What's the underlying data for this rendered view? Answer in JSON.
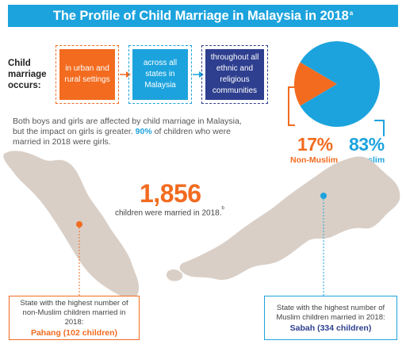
{
  "header": {
    "title": "The Profile of Child Marriage in Malaysia in 2018",
    "title_note": "a"
  },
  "occurs": {
    "label": "Child marriage occurs:",
    "boxes": [
      {
        "text": "in urban and rural settings",
        "color": "#f26b1f"
      },
      {
        "text": "across all states in Malaysia",
        "color": "#1ca3dd"
      },
      {
        "text": "throughout all ethnic and religious communities",
        "color": "#2e3f8f"
      }
    ]
  },
  "description": {
    "text_before": "Both boys and girls are affected by child marriage in Malaysia, but the impact on girls is greater. ",
    "highlight": "90%",
    "text_after": " of children who were married in 2018 were girls."
  },
  "religion_split": {
    "non_muslim": {
      "percent_label": "17%",
      "label": "Non-Muslim",
      "share": 17,
      "color": "#f26b1f"
    },
    "muslim": {
      "percent_label": "83%",
      "label": "Muslim",
      "share": 83,
      "color": "#1ca3dd"
    }
  },
  "total": {
    "number": "1,856",
    "caption": "children were married in 2018.",
    "caption_note": "b"
  },
  "callouts": {
    "left": {
      "text": "State with the highest number of non-Muslim children married in 2018:",
      "highlight": "Pahang (102 children)"
    },
    "right": {
      "text": "State with the highest number of Muslim children married in 2018:",
      "highlight": "Sabah (334 children)"
    }
  },
  "colors": {
    "orange": "#f26b1f",
    "blue": "#1ca3dd",
    "navy": "#2e3f8f",
    "map": "#d9cfc7"
  }
}
